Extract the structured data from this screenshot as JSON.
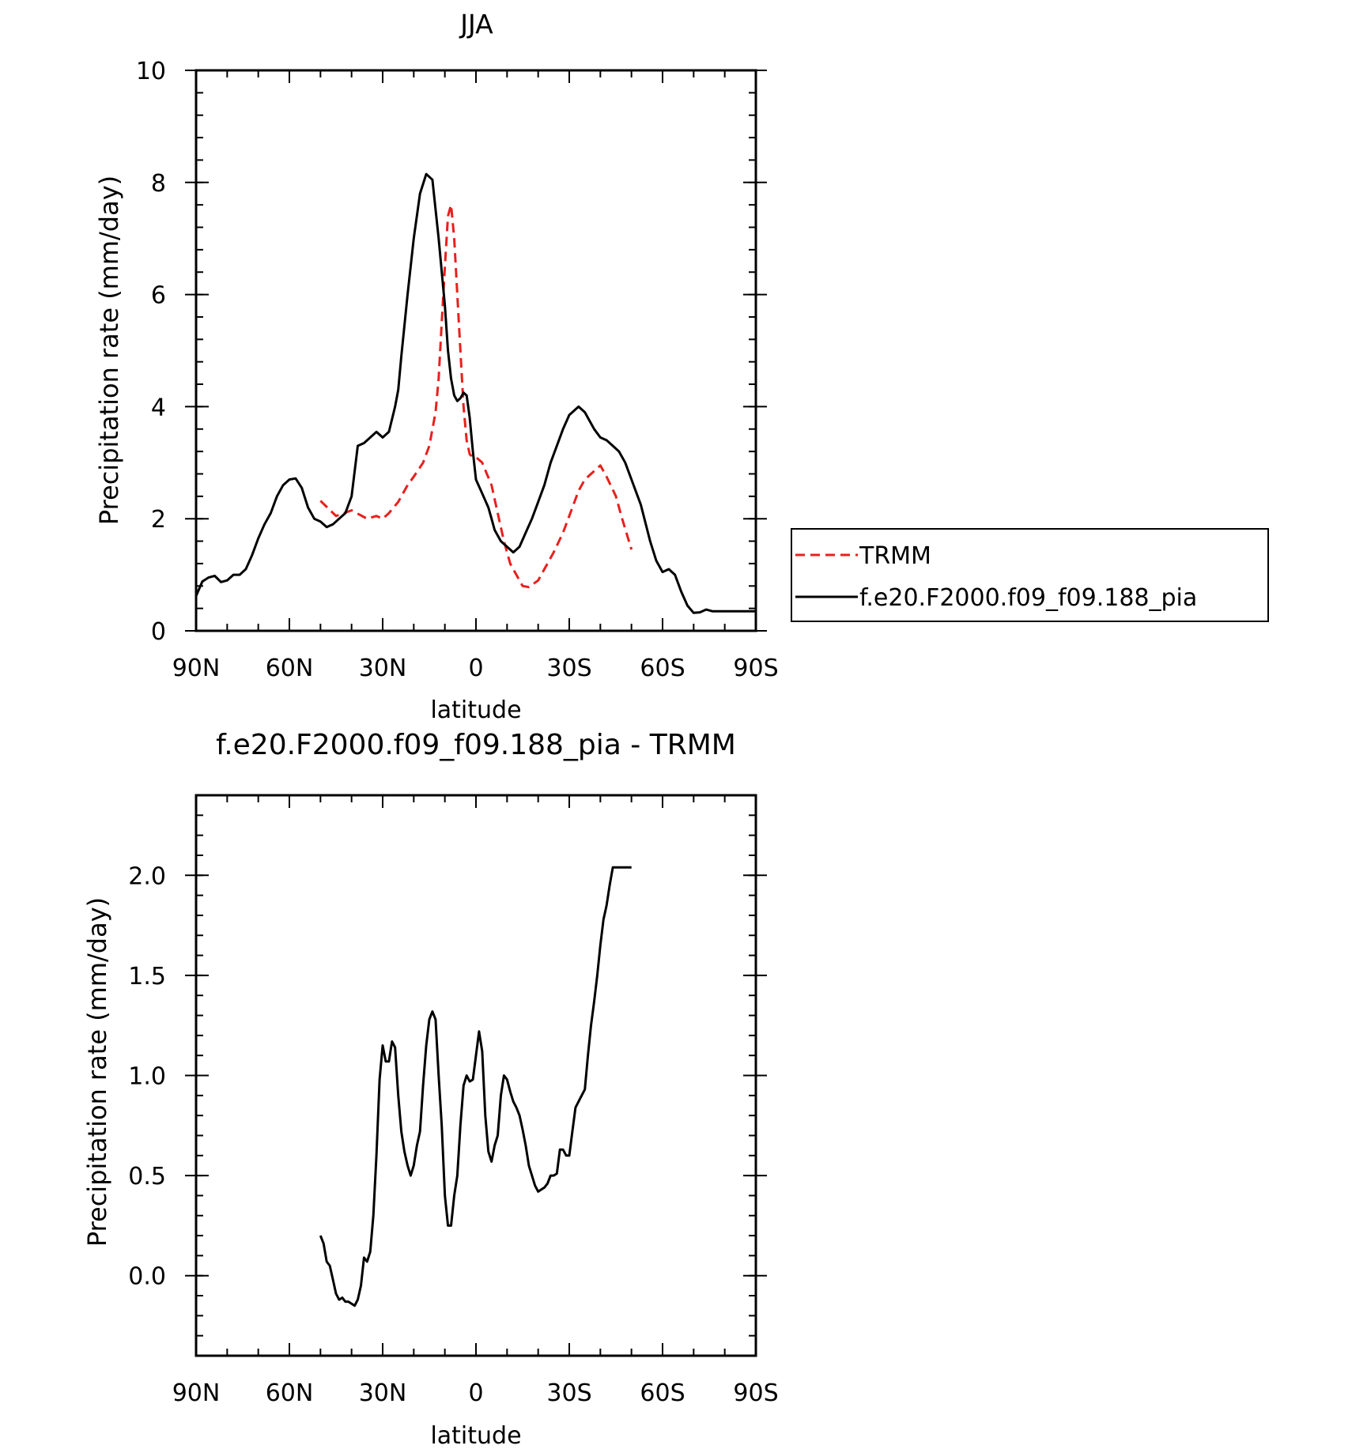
{
  "chart_data": [
    {
      "type": "line",
      "title": "JJA",
      "xlabel": "latitude",
      "ylabel": "Precipitation rate (mm/day)",
      "xlim": [
        90,
        -90
      ],
      "ylim": [
        0,
        10
      ],
      "x_ticks": [
        90,
        60,
        30,
        0,
        -30,
        -60,
        -90
      ],
      "x_tick_labels": [
        "90N",
        "60N",
        "30N",
        "0",
        "30S",
        "60S",
        "90S"
      ],
      "y_ticks": [
        0,
        2,
        4,
        6,
        8,
        10
      ],
      "y_tick_labels": [
        "0",
        "2",
        "4",
        "6",
        "8",
        "10"
      ],
      "legend_position": "right",
      "series": [
        {
          "name": "TRMM",
          "color": "#e8201c",
          "dash": "dashed",
          "x": [
            50,
            45,
            40,
            35,
            32,
            30,
            28,
            25,
            22,
            20,
            17,
            15,
            13,
            12,
            11,
            10,
            9,
            8,
            7,
            6,
            5,
            4,
            3,
            2,
            1,
            0,
            -2,
            -5,
            -7,
            -9,
            -11,
            -13,
            -15,
            -17,
            -20,
            -22,
            -25,
            -28,
            -30,
            -33,
            -35,
            -38,
            -40,
            -42,
            -45,
            -47,
            -50
          ],
          "y": [
            2.32,
            2.05,
            2.15,
            2.0,
            2.05,
            2.0,
            2.1,
            2.3,
            2.6,
            2.75,
            3.0,
            3.3,
            3.9,
            4.5,
            5.5,
            6.5,
            7.4,
            7.6,
            7.0,
            6.0,
            5.0,
            4.0,
            3.4,
            3.15,
            3.1,
            3.1,
            3.0,
            2.6,
            2.1,
            1.6,
            1.2,
            1.0,
            0.8,
            0.78,
            0.9,
            1.1,
            1.4,
            1.75,
            2.05,
            2.5,
            2.7,
            2.85,
            2.95,
            2.75,
            2.4,
            2.0,
            1.45
          ]
        },
        {
          "name": "f.e20.F2000.f09_f09.188_pia",
          "color": "#000000",
          "dash": "solid",
          "x": [
            90,
            88,
            86,
            84,
            82,
            80,
            78,
            76,
            74,
            72,
            70,
            68,
            66,
            64,
            62,
            60,
            58,
            56,
            54,
            52,
            50,
            48,
            46,
            44,
            42,
            40,
            38,
            36,
            34,
            32,
            30,
            28,
            26,
            25,
            24,
            22,
            20,
            18,
            16,
            14,
            12,
            10,
            9,
            8,
            7,
            6,
            5,
            4,
            3,
            2,
            1,
            0,
            -2,
            -4,
            -5,
            -6,
            -8,
            -10,
            -12,
            -14,
            -16,
            -18,
            -20,
            -22,
            -24,
            -26,
            -28,
            -30,
            -33,
            -35,
            -38,
            -40,
            -42,
            -44,
            -46,
            -48,
            -50,
            -53,
            -56,
            -58,
            -60,
            -62,
            -64,
            -66,
            -68,
            -70,
            -72,
            -74,
            -76,
            -78,
            -80,
            -82,
            -84,
            -86,
            -88,
            -90
          ],
          "y": [
            0.62,
            0.88,
            0.95,
            0.98,
            0.87,
            0.9,
            1.0,
            1.0,
            1.1,
            1.35,
            1.65,
            1.9,
            2.1,
            2.4,
            2.6,
            2.7,
            2.72,
            2.55,
            2.2,
            2.0,
            1.95,
            1.85,
            1.9,
            2.0,
            2.1,
            2.4,
            3.3,
            3.35,
            3.45,
            3.55,
            3.45,
            3.55,
            4.0,
            4.3,
            4.9,
            6.0,
            7.0,
            7.8,
            8.15,
            8.05,
            7.0,
            5.8,
            5.0,
            4.5,
            4.2,
            4.1,
            4.15,
            4.25,
            4.2,
            3.8,
            3.2,
            2.7,
            2.45,
            2.2,
            2.0,
            1.8,
            1.6,
            1.5,
            1.4,
            1.5,
            1.75,
            2.0,
            2.3,
            2.6,
            3.0,
            3.3,
            3.6,
            3.85,
            4.0,
            3.9,
            3.6,
            3.45,
            3.4,
            3.3,
            3.2,
            3.0,
            2.7,
            2.25,
            1.6,
            1.25,
            1.05,
            1.1,
            1.0,
            0.7,
            0.45,
            0.32,
            0.33,
            0.38,
            0.35,
            0.35,
            0.35,
            0.35,
            0.35,
            0.35,
            0.35,
            0.35
          ],
          "x_trim_note_removed": null
        }
      ]
    },
    {
      "type": "line",
      "title": "f.e20.F2000.f09_f09.188_pia - TRMM",
      "xlabel": "latitude",
      "ylabel": "Precipitation rate (mm/day)",
      "xlim": [
        90,
        -90
      ],
      "ylim": [
        -0.4,
        2.4
      ],
      "x_ticks": [
        90,
        60,
        30,
        0,
        -30,
        -60,
        -90
      ],
      "x_tick_labels": [
        "90N",
        "60N",
        "30N",
        "0",
        "30S",
        "60S",
        "90S"
      ],
      "y_ticks": [
        0.0,
        0.5,
        1.0,
        1.5,
        2.0
      ],
      "y_tick_labels": [
        "0.0",
        "0.5",
        "1.0",
        "1.5",
        "2.0"
      ],
      "series": [
        {
          "color": "#000000",
          "dash": "solid",
          "x": [
            50,
            49,
            48,
            47,
            46,
            45,
            44,
            43,
            42,
            41,
            40,
            39,
            38,
            37,
            36,
            35,
            34,
            33,
            32,
            31,
            30,
            29,
            28,
            27,
            26,
            25,
            24,
            23,
            22,
            21,
            20,
            19,
            18,
            17,
            16,
            15,
            14,
            13,
            12,
            11,
            10,
            9,
            8,
            7,
            6,
            5,
            4,
            3,
            2,
            1,
            0,
            -1,
            -2,
            -3,
            -4,
            -5,
            -6,
            -7,
            -8,
            -9,
            -10,
            -11,
            -12,
            -13,
            -14,
            -15,
            -16,
            -17,
            -18,
            -19,
            -20,
            -21,
            -22,
            -23,
            -24,
            -25,
            -26,
            -27,
            -28,
            -29,
            -30,
            -31,
            -32,
            -33,
            -34,
            -35,
            -36,
            -37,
            -38,
            -39,
            -40,
            -41,
            -42,
            -43,
            -44,
            -45,
            -46,
            -47,
            -48,
            -49,
            -50
          ],
          "y": [
            0.2,
            0.16,
            0.07,
            0.05,
            -0.02,
            -0.09,
            -0.12,
            -0.11,
            -0.13,
            -0.13,
            -0.14,
            -0.15,
            -0.12,
            -0.05,
            0.09,
            0.07,
            0.12,
            0.3,
            0.6,
            0.98,
            1.15,
            1.07,
            1.07,
            1.17,
            1.14,
            0.9,
            0.72,
            0.62,
            0.55,
            0.5,
            0.55,
            0.65,
            0.72,
            0.95,
            1.15,
            1.28,
            1.32,
            1.28,
            1.0,
            0.75,
            0.4,
            0.25,
            0.25,
            0.4,
            0.5,
            0.75,
            0.95,
            1.0,
            0.97,
            0.98,
            1.1,
            1.22,
            1.12,
            0.8,
            0.62,
            0.57,
            0.65,
            0.7,
            0.9,
            1.0,
            0.98,
            0.92,
            0.87,
            0.84,
            0.8,
            0.73,
            0.65,
            0.55,
            0.5,
            0.45,
            0.42,
            0.43,
            0.44,
            0.46,
            0.5,
            0.5,
            0.51,
            0.63,
            0.63,
            0.6,
            0.6,
            0.72,
            0.84,
            0.87,
            0.9,
            0.93,
            1.1,
            1.25,
            1.37,
            1.5,
            1.65,
            1.78,
            1.85,
            1.95,
            2.04,
            2.04,
            2.04,
            2.04,
            2.04,
            2.04,
            2.04
          ]
        }
      ]
    }
  ]
}
